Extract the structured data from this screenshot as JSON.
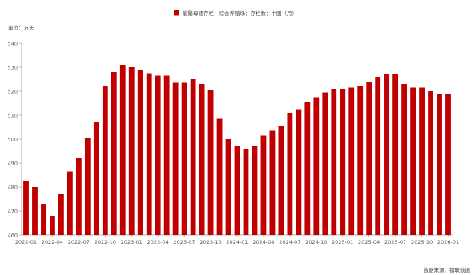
{
  "colors": {
    "bar": "#c00000",
    "axis": "#999999",
    "text": "#444444"
  },
  "legend": {
    "label": "能繁母猪存栏：综合养殖场：存栏数：中国（月）"
  },
  "unit": {
    "label": "单位：万头"
  },
  "source": {
    "label": "数据来源：钢联数据"
  },
  "chart_data": {
    "type": "bar",
    "legend_position": "top-center",
    "grid": false,
    "ylim": [
      460,
      540
    ],
    "yticks": [
      460,
      470,
      480,
      490,
      500,
      510,
      520,
      530,
      540
    ],
    "xtick_labels": [
      "2022-01",
      "2022-04",
      "2022-07",
      "2022-10",
      "2023-01",
      "2023-04",
      "2023-07",
      "2023-10",
      "2024-01",
      "2024-04",
      "2024-07",
      "2024-10",
      "2025-01",
      "2025-04",
      "2025-07",
      "2025-10",
      "2026-01"
    ],
    "series": [
      {
        "name": "能繁母猪存栏：综合养殖场：存栏数：中国（月）",
        "x": [
          "2022-01",
          "2022-02",
          "2022-03",
          "2022-04",
          "2022-05",
          "2022-06",
          "2022-07",
          "2022-08",
          "2022-09",
          "2022-10",
          "2022-11",
          "2022-12",
          "2023-01",
          "2023-02",
          "2023-03",
          "2023-04",
          "2023-05",
          "2023-06",
          "2023-07",
          "2023-08",
          "2023-09",
          "2023-10",
          "2023-11",
          "2023-12",
          "2024-01",
          "2024-02",
          "2024-03",
          "2024-04",
          "2024-05",
          "2024-06",
          "2024-07",
          "2024-08",
          "2024-09",
          "2024-10",
          "2024-11",
          "2024-12",
          "2025-01",
          "2025-02",
          "2025-03",
          "2025-04",
          "2025-05",
          "2025-06",
          "2025-07",
          "2025-08",
          "2025-09",
          "2025-10",
          "2025-11",
          "2025-12",
          "2026-01"
        ],
        "values": [
          482.5,
          480,
          473,
          468,
          477,
          486.5,
          492,
          500.5,
          507,
          522,
          528,
          531,
          530,
          529,
          527.5,
          526.5,
          526.5,
          523.5,
          523.5,
          525,
          523,
          520.5,
          508.5,
          500,
          497,
          496,
          497,
          501.5,
          503.5,
          505.5,
          511,
          512.5,
          515.5,
          517.5,
          519.5,
          521,
          521,
          521.5,
          522,
          524,
          526,
          527,
          527,
          523,
          521.5,
          521.5,
          520,
          519,
          519
        ]
      }
    ]
  }
}
